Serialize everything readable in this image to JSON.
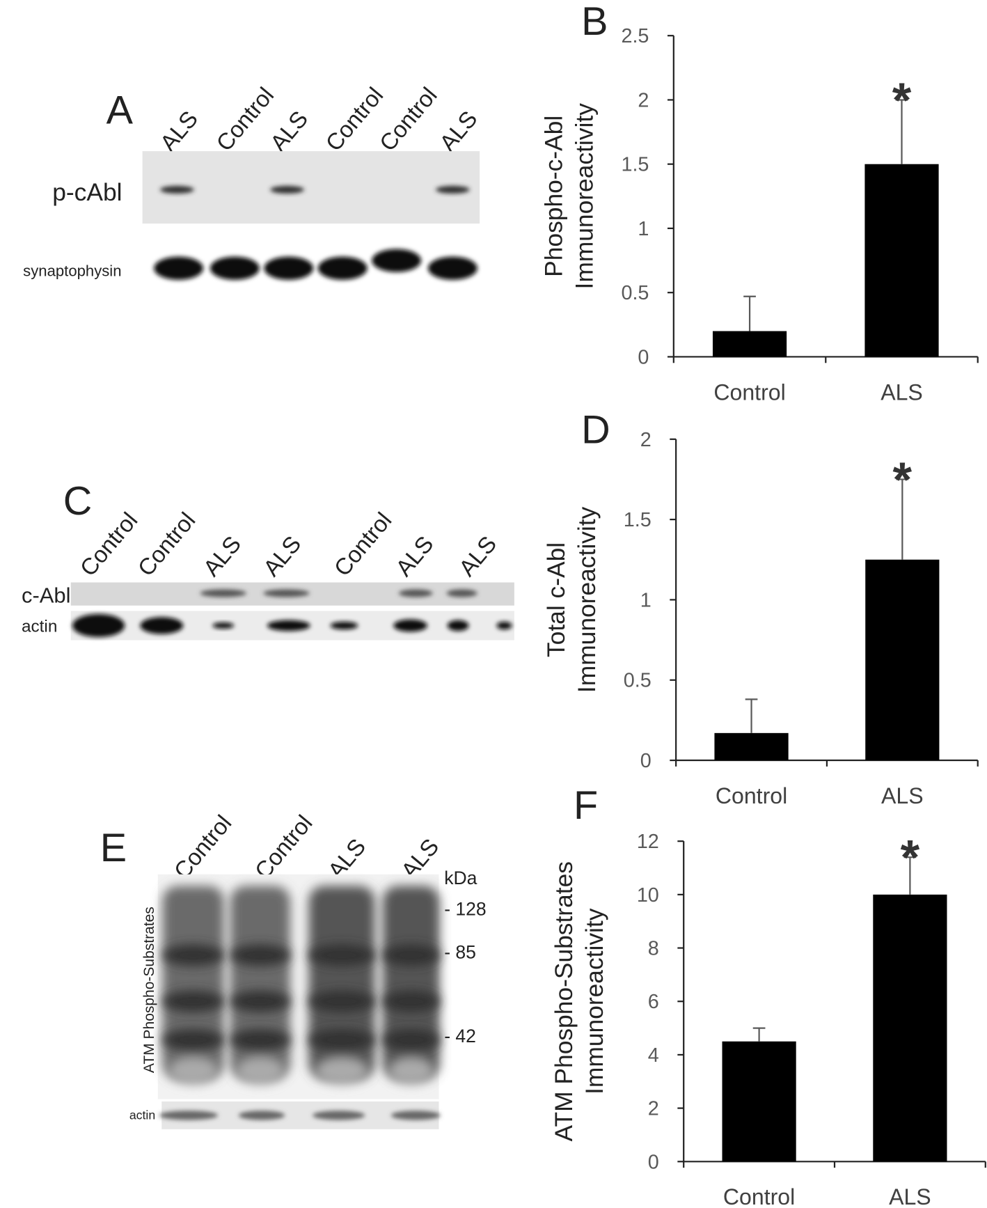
{
  "blots": {
    "A": {
      "label": "A",
      "lanes": [
        "ALS",
        "Control",
        "ALS",
        "Control",
        "Control",
        "ALS"
      ],
      "rows": [
        "p-cAbl",
        "synaptophysin"
      ]
    },
    "C": {
      "label": "C",
      "lanes": [
        "Control",
        "Control",
        "ALS",
        "ALS",
        "Control",
        "ALS",
        "ALS"
      ],
      "rows": [
        "c-Abl",
        "actin"
      ]
    },
    "E": {
      "label": "E",
      "lanes": [
        "Control",
        "Control",
        "ALS",
        "ALS"
      ],
      "row_label": "ATM Phospho-Substrates",
      "loading_label": "actin",
      "mw_unit": "kDa",
      "mw_markers": [
        "- 128",
        "- 85",
        "- 42"
      ]
    }
  },
  "chart_data": [
    {
      "type": "bar",
      "panel": "B",
      "ylabel": [
        "Phospho-c-Abl",
        "Immunoreactivity"
      ],
      "categories": [
        "Control",
        "ALS"
      ],
      "values": [
        0.2,
        1.5
      ],
      "errors": [
        0.27,
        0.5
      ],
      "color": "#000000",
      "ylim": [
        0,
        2.5
      ],
      "yticks": [
        0,
        0.5,
        1,
        1.5,
        2,
        2.5
      ],
      "annotation": {
        "text": "*",
        "x": "ALS"
      }
    },
    {
      "type": "bar",
      "panel": "D",
      "ylabel": [
        "Total c-Abl",
        "Immunoreactivity"
      ],
      "categories": [
        "Control",
        "ALS"
      ],
      "values": [
        0.17,
        1.25
      ],
      "errors": [
        0.21,
        0.5
      ],
      "color": "#000000",
      "ylim": [
        0,
        2
      ],
      "yticks": [
        0,
        0.5,
        1,
        1.5,
        2
      ],
      "annotation": {
        "text": "*",
        "x": "ALS"
      }
    },
    {
      "type": "bar",
      "panel": "F",
      "ylabel": [
        "ATM Phospho-Substrates",
        "Immunoreactivity"
      ],
      "categories": [
        "Control",
        "ALS"
      ],
      "values": [
        4.5,
        10
      ],
      "errors": [
        0.5,
        1.4
      ],
      "color": "#000000",
      "ylim": [
        0,
        12
      ],
      "yticks": [
        0,
        2,
        4,
        6,
        8,
        10,
        12
      ],
      "annotation": {
        "text": "*",
        "x": "ALS"
      }
    }
  ]
}
